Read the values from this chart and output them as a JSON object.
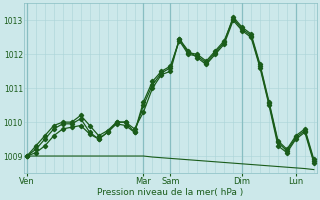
{
  "xlabel": "Pression niveau de la mer( hPa )",
  "bg_color": "#cce8ea",
  "grid_color": "#aad4d8",
  "line_color": "#1a5c1a",
  "tick_color": "#1a5c1a",
  "ylim": [
    1008.5,
    1013.5
  ],
  "day_labels": [
    "Ven",
    "Mar",
    "Sam",
    "Dim",
    "Lun"
  ],
  "day_x": [
    0,
    13,
    16,
    24,
    30
  ],
  "n_points": 33,
  "major_vert_x": [
    0,
    13,
    16,
    24,
    30
  ],
  "yticks": [
    1009,
    1010,
    1011,
    1012,
    1013
  ],
  "series1": [
    1009.0,
    1009.3,
    1009.6,
    1009.9,
    1010.0,
    1010.0,
    1010.2,
    1009.9,
    1009.6,
    1009.75,
    1010.0,
    1010.0,
    1009.8,
    1010.3,
    1011.0,
    1011.4,
    1011.5,
    1012.45,
    1012.1,
    1011.9,
    1011.7,
    1012.0,
    1012.3,
    1013.0,
    1012.7,
    1012.5,
    1011.6,
    1010.5,
    1009.3,
    1009.1,
    1009.5,
    1009.7,
    1008.8
  ],
  "series2": [
    1009.0,
    1009.2,
    1009.5,
    1009.8,
    1009.95,
    1009.95,
    1010.1,
    1009.7,
    1009.5,
    1009.7,
    1010.0,
    1010.0,
    1009.7,
    1010.5,
    1011.1,
    1011.45,
    1011.6,
    1012.45,
    1012.05,
    1012.0,
    1011.8,
    1012.1,
    1012.4,
    1013.05,
    1012.75,
    1012.55,
    1011.65,
    1010.55,
    1009.4,
    1009.15,
    1009.55,
    1009.75,
    1008.85
  ],
  "series3": [
    1009.0,
    1009.1,
    1009.3,
    1009.6,
    1009.8,
    1009.85,
    1009.9,
    1009.65,
    1009.5,
    1009.7,
    1009.95,
    1009.9,
    1009.7,
    1010.6,
    1011.2,
    1011.5,
    1011.65,
    1012.4,
    1012.0,
    1011.95,
    1011.75,
    1012.05,
    1012.35,
    1013.1,
    1012.8,
    1012.6,
    1011.7,
    1010.6,
    1009.45,
    1009.2,
    1009.6,
    1009.8,
    1008.9
  ],
  "series_flat": [
    1009.0,
    1009.0,
    1009.0,
    1009.0,
    1009.0,
    1009.0,
    1009.0,
    1009.0,
    1009.0,
    1009.0,
    1009.0,
    1009.0,
    1009.0,
    1009.0,
    1008.97,
    1008.95,
    1008.93,
    1008.91,
    1008.89,
    1008.87,
    1008.85,
    1008.83,
    1008.81,
    1008.79,
    1008.77,
    1008.75,
    1008.73,
    1008.71,
    1008.69,
    1008.67,
    1008.65,
    1008.63,
    1008.6
  ]
}
